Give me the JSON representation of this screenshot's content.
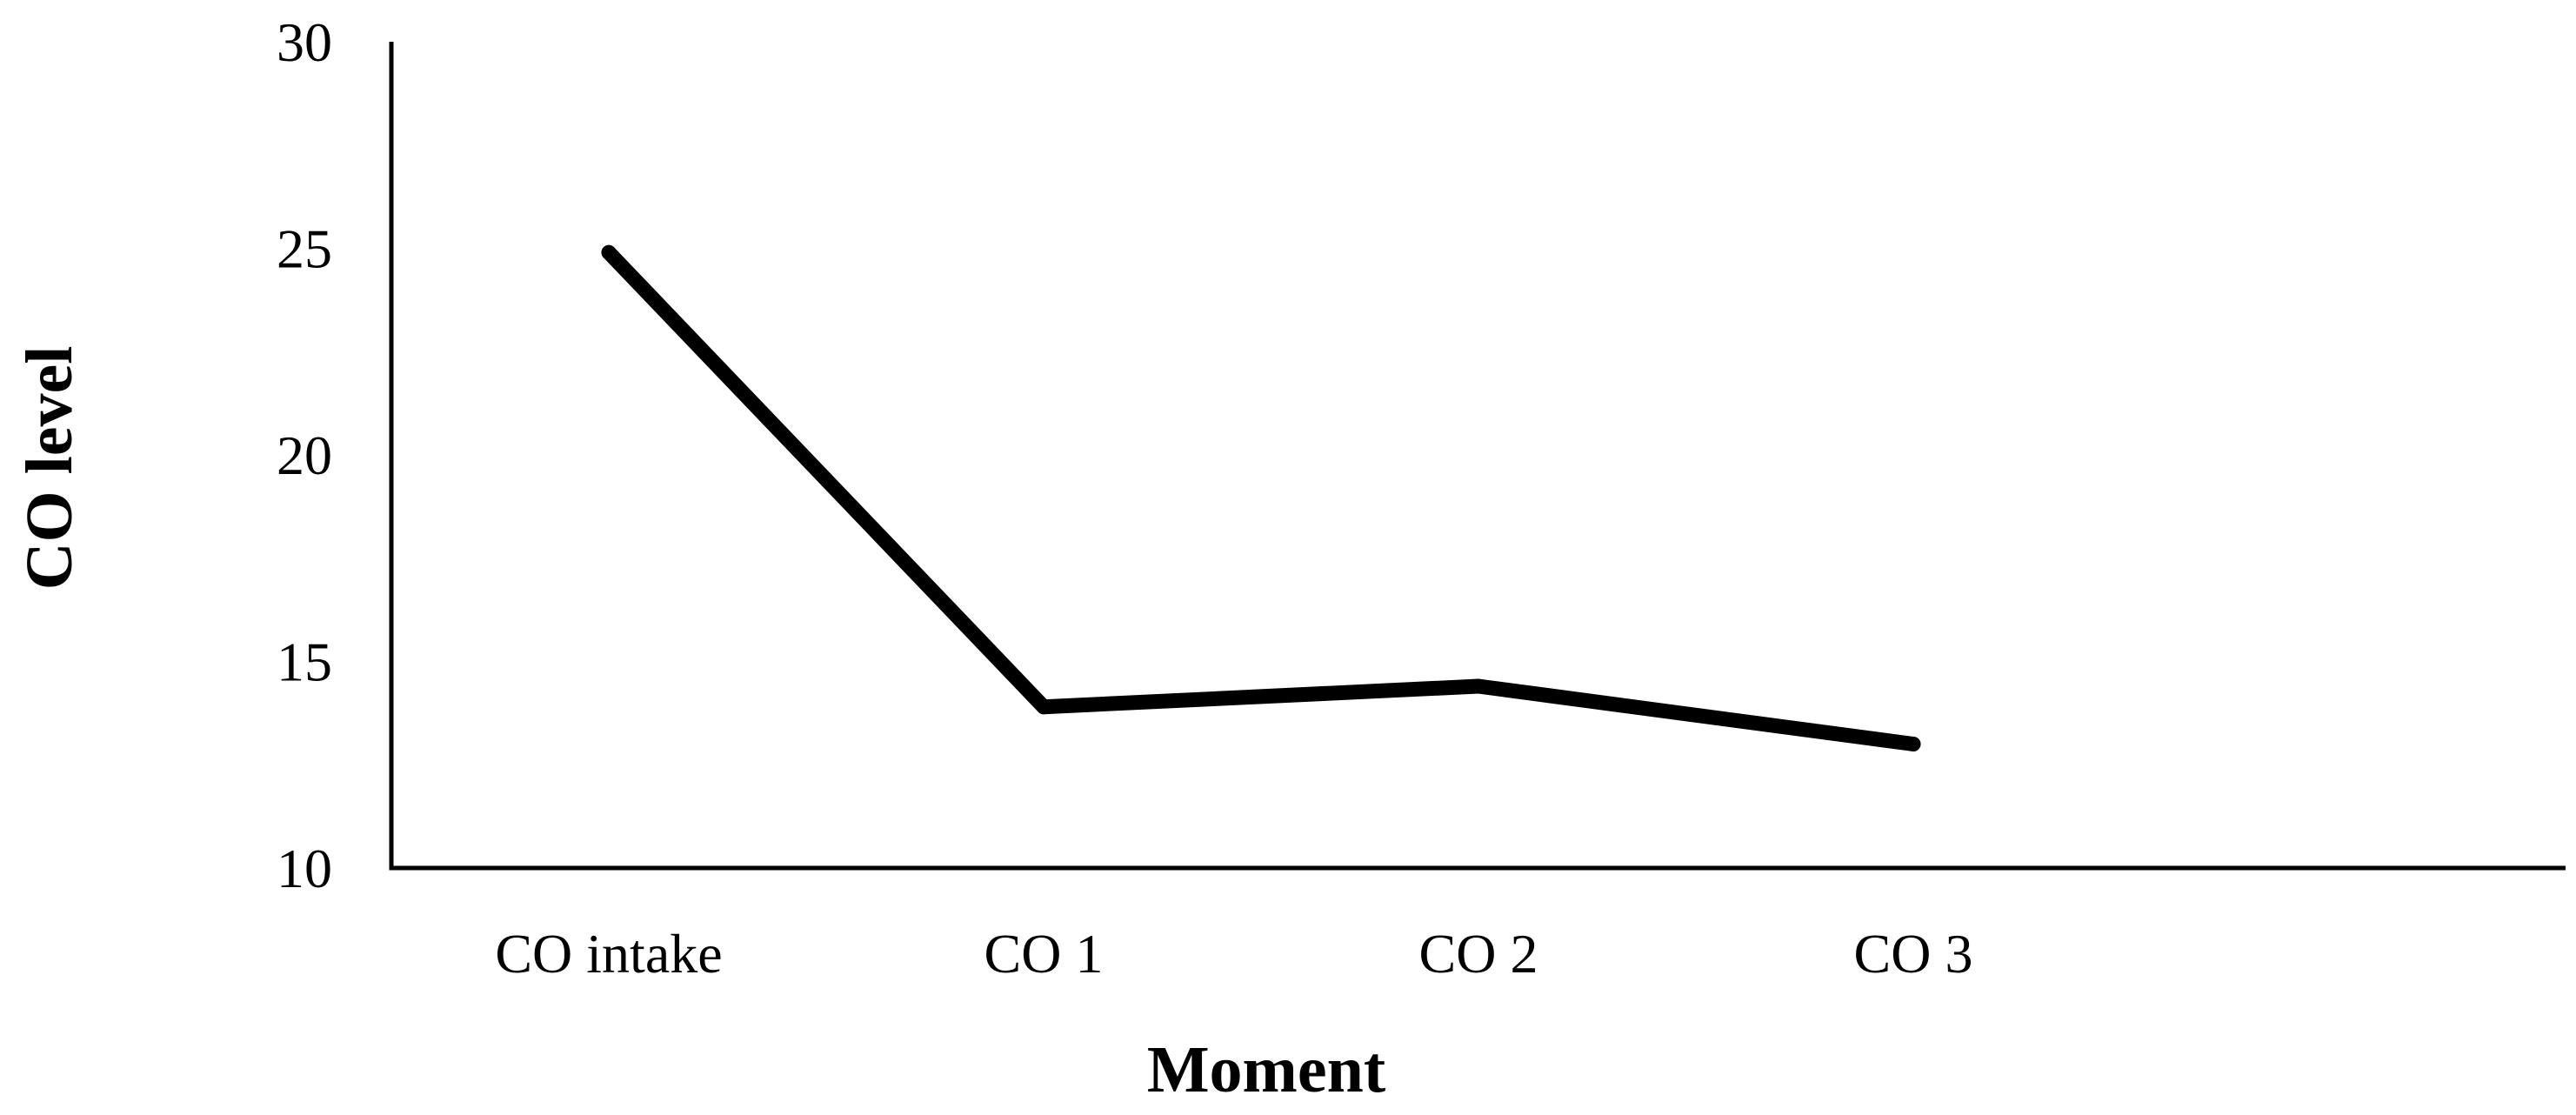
{
  "chart_data": {
    "type": "line",
    "title": "",
    "xlabel": "Moment",
    "ylabel": "CO level",
    "categories": [
      "CO intake",
      "CO 1",
      "CO 2",
      "CO 3"
    ],
    "series": [
      {
        "values": [
          24.9,
          13.9,
          14.4,
          13.0
        ]
      }
    ],
    "ylim": [
      10,
      30
    ],
    "yticks": [
      "10",
      "15",
      "20",
      "25",
      "30"
    ],
    "grid": false,
    "legend": "none",
    "line_color": "#000000"
  }
}
